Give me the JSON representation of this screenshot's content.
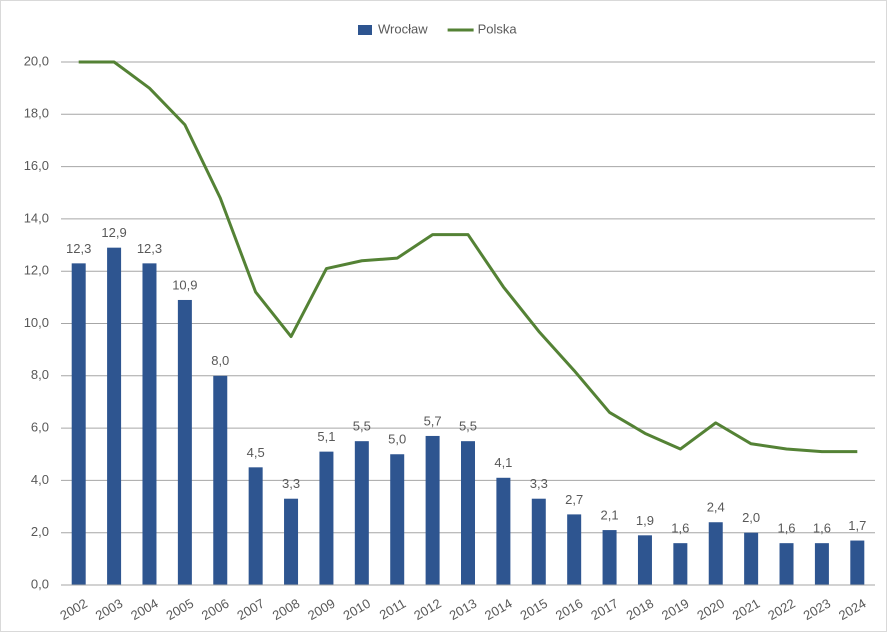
{
  "chart_data": {
    "type": "combo",
    "categories": [
      "2002",
      "2003",
      "2004",
      "2005",
      "2006",
      "2007",
      "2008",
      "2009",
      "2010",
      "2011",
      "2012",
      "2013",
      "2014",
      "2015",
      "2016",
      "2017",
      "2018",
      "2019",
      "2020",
      "2021",
      "2022",
      "2023",
      "2024"
    ],
    "series": [
      {
        "name": "Wrocław",
        "type": "bar",
        "color": "#2e5590",
        "values": [
          12.3,
          12.9,
          12.3,
          10.9,
          8.0,
          4.5,
          3.3,
          5.1,
          5.5,
          5.0,
          5.7,
          5.5,
          4.1,
          3.3,
          2.7,
          2.1,
          1.9,
          1.6,
          2.4,
          2.0,
          1.6,
          1.6,
          1.7
        ],
        "value_labels": [
          "12,3",
          "12,9",
          "12,3",
          "10,9",
          "8,0",
          "4,5",
          "3,3",
          "5,1",
          "5,5",
          "5,0",
          "5,7",
          "5,5",
          "4,1",
          "3,3",
          "2,7",
          "2,1",
          "1,9",
          "1,6",
          "2,4",
          "2,0",
          "1,6",
          "1,6",
          "1,7"
        ]
      },
      {
        "name": "Polska",
        "type": "line",
        "color": "#548235",
        "values": [
          20.0,
          20.0,
          19.0,
          17.6,
          14.8,
          11.2,
          9.5,
          12.1,
          12.4,
          12.5,
          13.4,
          13.4,
          11.4,
          9.7,
          8.2,
          6.6,
          5.8,
          5.2,
          6.2,
          5.4,
          5.2,
          5.1,
          5.1
        ]
      }
    ],
    "ylim": [
      0,
      20
    ],
    "yticks": [
      {
        "value": 0,
        "label": "0,0"
      },
      {
        "value": 2,
        "label": "2,0"
      },
      {
        "value": 4,
        "label": "4,0"
      },
      {
        "value": 6,
        "label": "6,0"
      },
      {
        "value": 8,
        "label": "8,0"
      },
      {
        "value": 10,
        "label": "10,0"
      },
      {
        "value": 12,
        "label": "12,0"
      },
      {
        "value": 14,
        "label": "14,0"
      },
      {
        "value": 16,
        "label": "16,0"
      },
      {
        "value": 18,
        "label": "18,0"
      },
      {
        "value": 20,
        "label": "20,0"
      }
    ],
    "grid": true,
    "legend": "top"
  }
}
